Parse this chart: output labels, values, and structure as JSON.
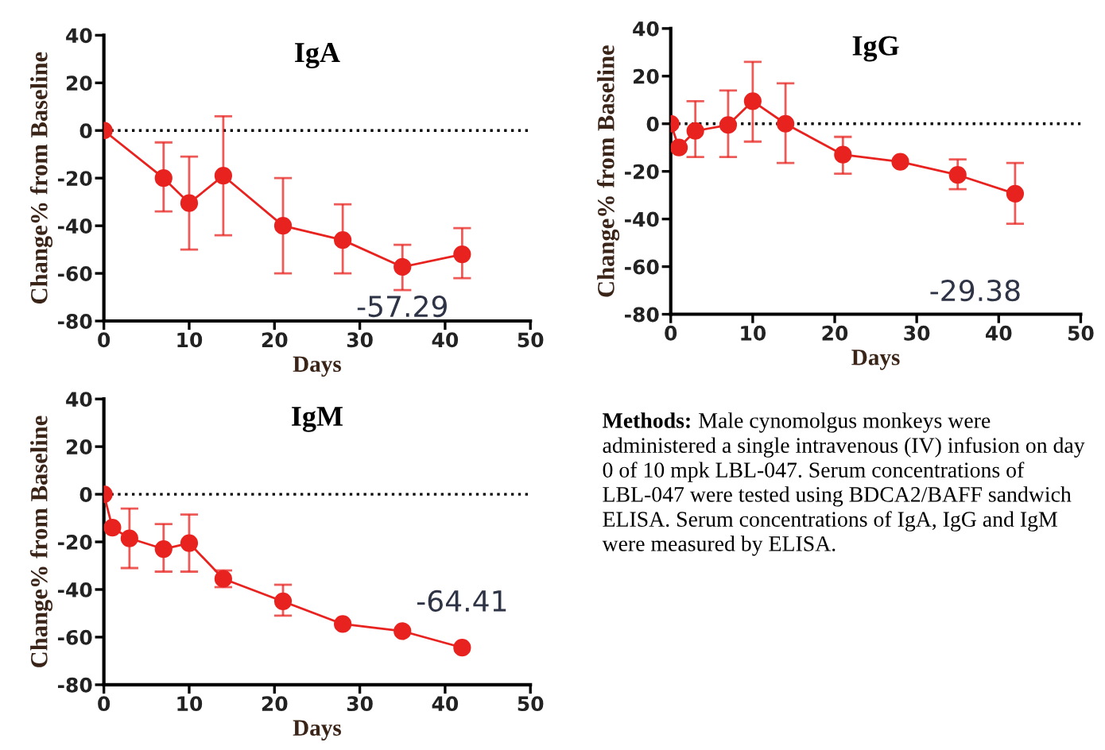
{
  "chart_data": [
    {
      "type": "line",
      "title": "IgA",
      "xlabel": "Days",
      "ylabel": "Change% from Baseline",
      "xlim": [
        0,
        50
      ],
      "xticks": [
        0,
        10,
        20,
        30,
        40,
        50
      ],
      "ylim": [
        -80,
        40
      ],
      "yticks": [
        -80,
        -60,
        -40,
        -20,
        0,
        20,
        40
      ],
      "marker": "circle",
      "grid": false,
      "legend": false,
      "ref_lines": [
        {
          "axis": "y",
          "value": 0,
          "line_style": "dotted",
          "color": "#000000"
        }
      ],
      "annotations": [
        "-57.29"
      ],
      "series": [
        {
          "color": "#e8231f",
          "x": [
            0,
            7,
            10,
            14,
            21,
            28,
            35,
            42
          ],
          "values": [
            0,
            -20,
            -30.5,
            -19,
            -40,
            -46,
            -57.29,
            -52
          ],
          "errors": [
            null,
            [
              -34,
              -5
            ],
            [
              -50,
              -11
            ],
            [
              -44,
              6
            ],
            [
              -60,
              -20
            ],
            [
              -60,
              -31
            ],
            [
              -67,
              -48
            ],
            [
              -62,
              -41
            ]
          ]
        }
      ]
    },
    {
      "type": "line",
      "title": "IgG",
      "xlabel": "Days",
      "ylabel": "Change% from Baseline",
      "xlim": [
        0,
        50
      ],
      "xticks": [
        0,
        10,
        20,
        30,
        40,
        50
      ],
      "ylim": [
        -80,
        40
      ],
      "yticks": [
        -80,
        -60,
        -40,
        -20,
        0,
        20,
        40
      ],
      "marker": "circle",
      "grid": false,
      "legend": false,
      "ref_lines": [
        {
          "axis": "y",
          "value": 0,
          "line_style": "dotted",
          "color": "#000000"
        }
      ],
      "annotations": [
        "-29.38"
      ],
      "series": [
        {
          "color": "#e8231f",
          "x": [
            0,
            1,
            3,
            7,
            10,
            14,
            21,
            28,
            35,
            42
          ],
          "values": [
            0,
            -10,
            -3,
            -0.5,
            9.5,
            0,
            -13,
            -16,
            -21.5,
            -29.38
          ],
          "errors": [
            null,
            null,
            [
              -14,
              9.5
            ],
            [
              -14,
              14
            ],
            [
              -7.5,
              26
            ],
            [
              -16.5,
              17
            ],
            [
              -21,
              -5.5
            ],
            null,
            [
              -27.5,
              -15
            ],
            [
              -42,
              -16.5
            ]
          ]
        }
      ]
    },
    {
      "type": "line",
      "title": "IgM",
      "xlabel": "Days",
      "ylabel": "Change% from Baseline",
      "xlim": [
        0,
        50
      ],
      "xticks": [
        0,
        10,
        20,
        30,
        40,
        50
      ],
      "ylim": [
        -80,
        40
      ],
      "yticks": [
        -80,
        -60,
        -40,
        -20,
        0,
        20,
        40
      ],
      "marker": "circle",
      "grid": false,
      "legend": false,
      "ref_lines": [
        {
          "axis": "y",
          "value": 0,
          "line_style": "dotted",
          "color": "#000000"
        }
      ],
      "annotations": [
        "-64.41"
      ],
      "series": [
        {
          "color": "#e8231f",
          "x": [
            0,
            1,
            3,
            7,
            10,
            14,
            21,
            28,
            35,
            42
          ],
          "values": [
            0,
            -14,
            -18.5,
            -23,
            -20.5,
            -35.5,
            -45,
            -54.5,
            -57.5,
            -64.41
          ],
          "errors": [
            null,
            null,
            [
              -31,
              -6
            ],
            [
              -32.5,
              -12.5
            ],
            [
              -32.5,
              -8.5
            ],
            [
              -39,
              -32
            ],
            [
              -51,
              -38
            ],
            null,
            null,
            null
          ]
        }
      ]
    },
    {
      "type": "other",
      "annotations": [
        "Methods:",
        "Male cynomolgus monkeys were administered a single intravenous (IV) infusion on day 0 of 10 mpk LBL-047. Serum concentrations of LBL-047 were tested using BDCA2/BAFF sandwich ELISA. Serum concentrations of IgA, IgG and IgM were measured by ELISA."
      ]
    }
  ]
}
